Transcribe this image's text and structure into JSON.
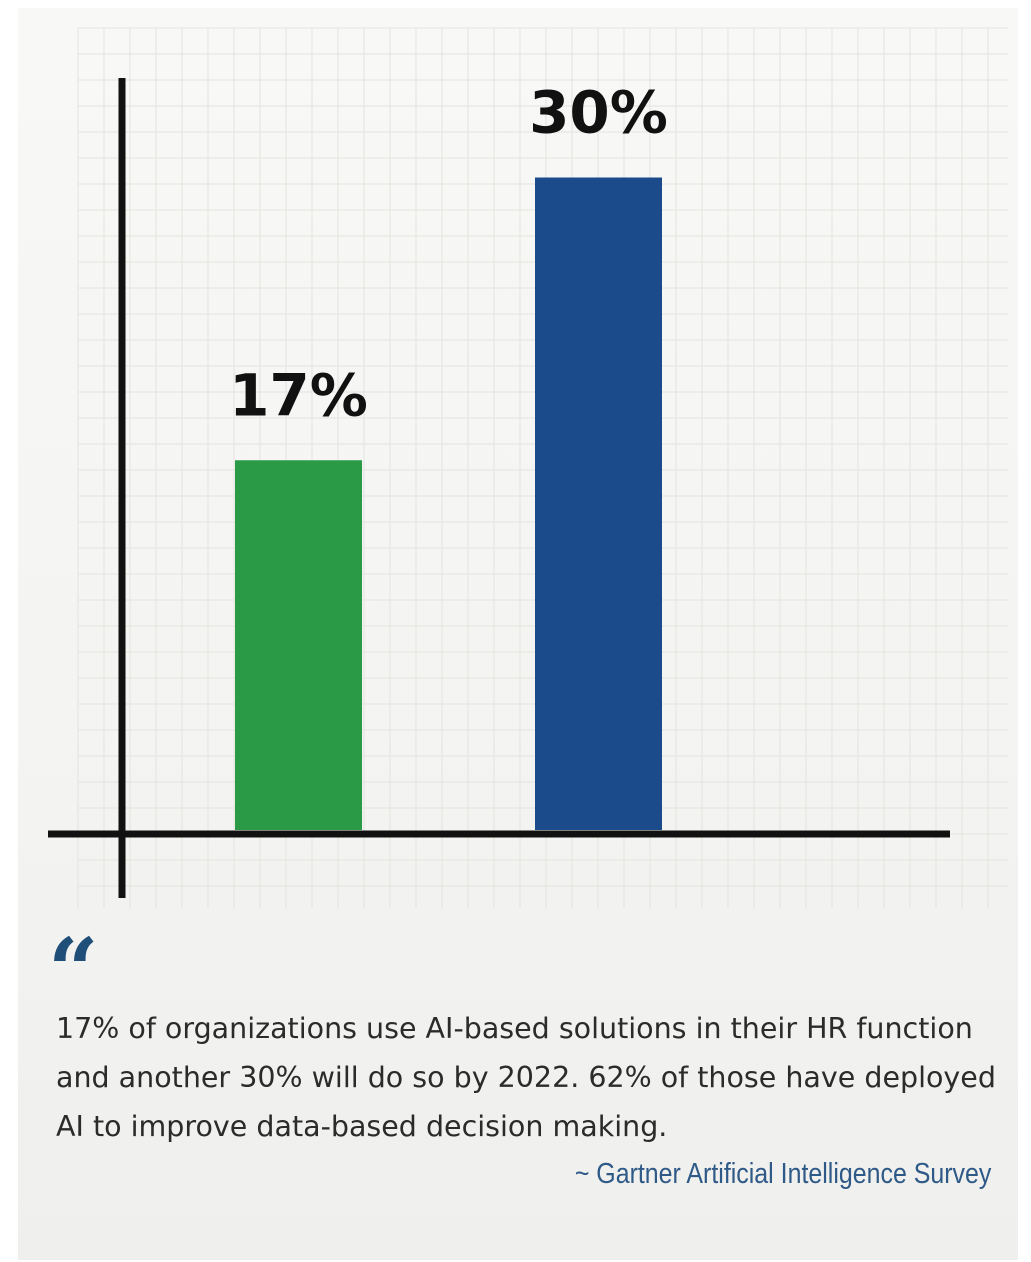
{
  "chart_data": {
    "type": "bar",
    "categories": [
      "",
      ""
    ],
    "values": [
      17,
      30
    ],
    "value_labels": [
      "17%",
      "30%"
    ],
    "colors": [
      "#2a9a47",
      "#1b4b8a"
    ],
    "title": "",
    "xlabel": "",
    "ylabel": "",
    "ylim": [
      0,
      38
    ],
    "grid": true,
    "legend": "none"
  },
  "quote": {
    "text": "17% of organizations use AI-based solutions in their HR function and another 30% will do so by 2022. 62% of those have deployed AI to improve data-based decision making.",
    "source": "~ Gartner Artificial Intelligence Survey",
    "accent_color": "#1f4e79"
  }
}
